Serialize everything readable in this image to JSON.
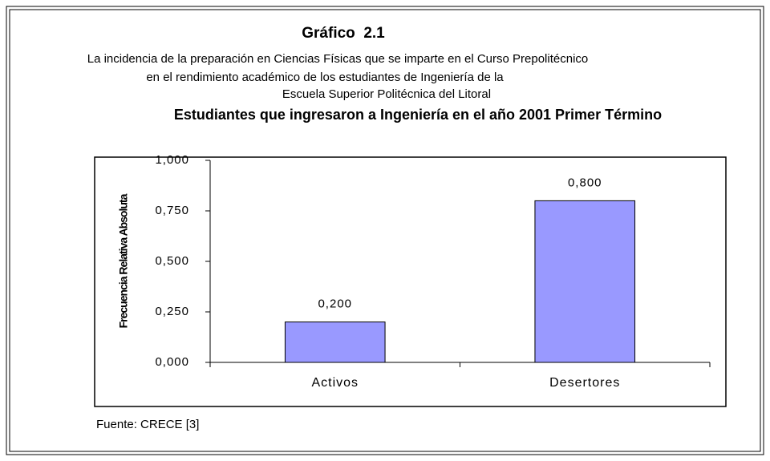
{
  "chart_data": {
    "type": "bar",
    "figure_label": "Gráfico  2.1",
    "subtitle": [
      "La incidencia de la preparación en Ciencias Físicas que se imparte en el Curso Prepolitécnico",
      "en el rendimiento académico de los estudiantes de Ingeniería de la",
      "Escuela Superior Politécnica del Litoral"
    ],
    "title": "Estudiantes que ingresaron a Ingeniería en el año 2001 Primer Término",
    "ylabel": "Frecuencia Relativa Absoluta",
    "categories": [
      "Activos",
      "Desertores"
    ],
    "values": [
      0.2,
      0.8
    ],
    "value_labels": [
      "0,200",
      "0,800"
    ],
    "color": "#9999ff",
    "ylim": [
      0,
      1
    ],
    "yticks": [
      {
        "value": 0,
        "label": "0,000"
      },
      {
        "value": 0.25,
        "label": "0,250"
      },
      {
        "value": 0.5,
        "label": "0,500"
      },
      {
        "value": 0.75,
        "label": "0,750"
      },
      {
        "value": 1,
        "label": "1,000"
      }
    ],
    "grid": false,
    "source": "Fuente: CRECE [3]"
  }
}
